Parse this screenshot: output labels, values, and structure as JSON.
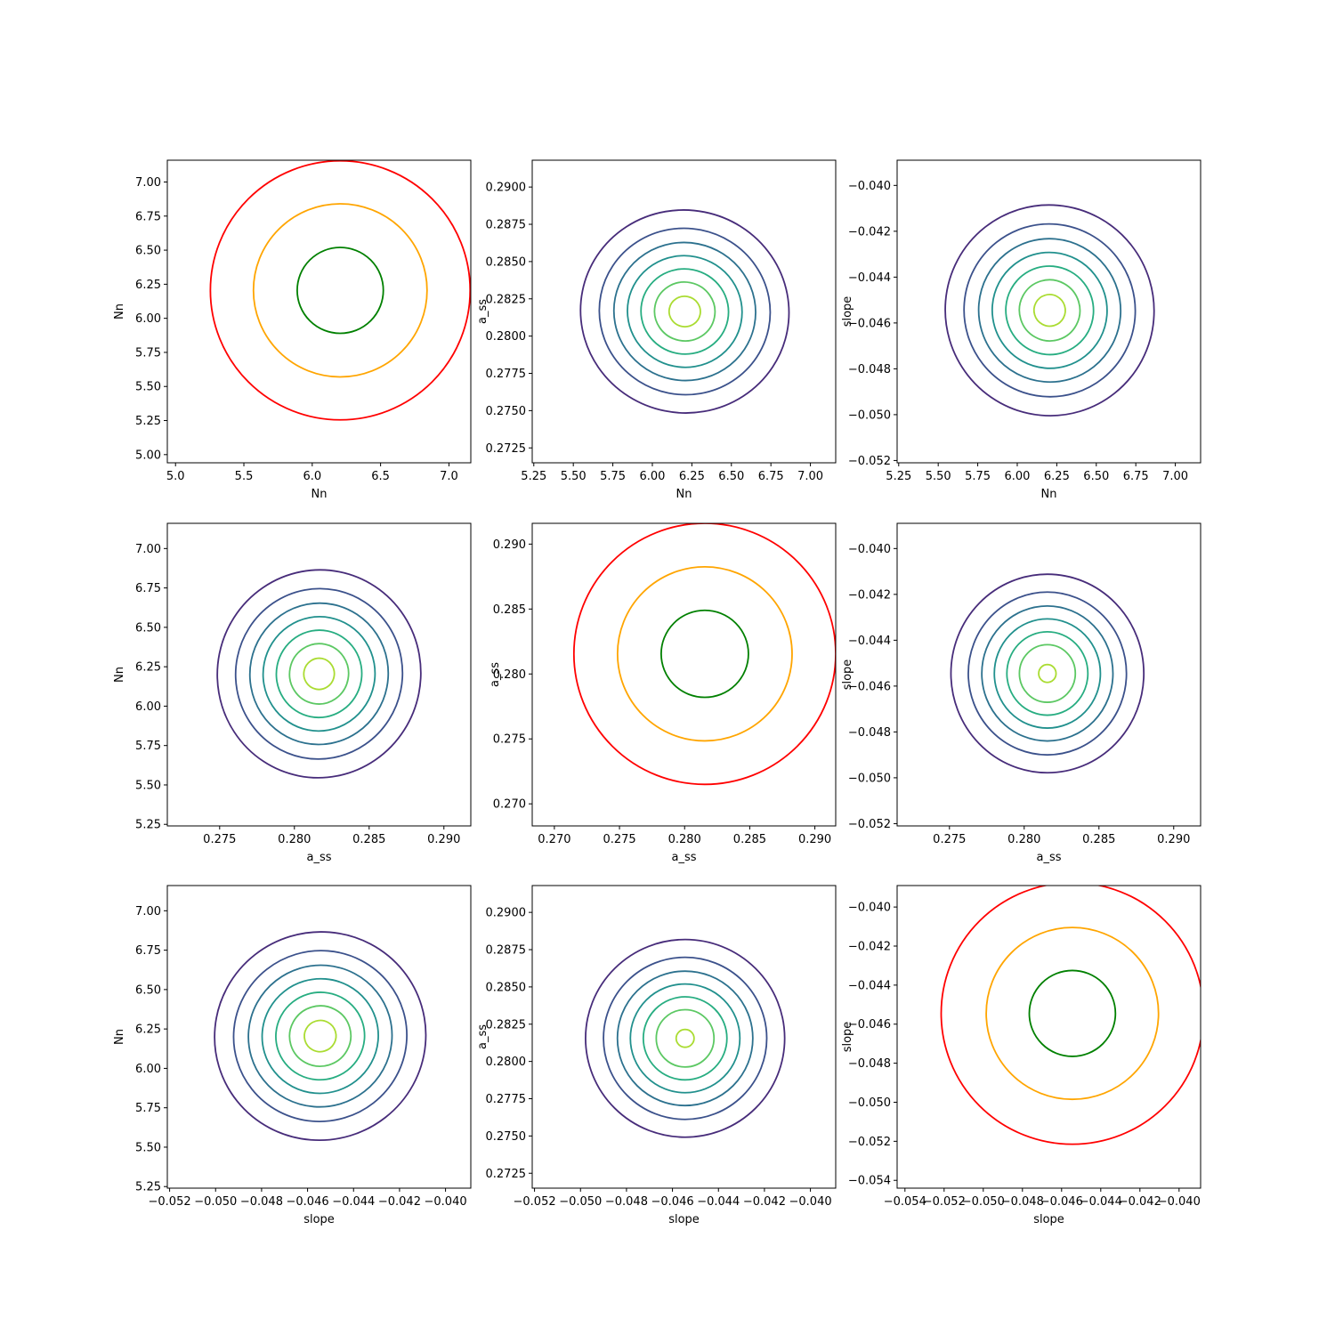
{
  "chart_data": [
    {
      "id": "p00",
      "row": 0,
      "col": 0,
      "type": "contour",
      "xlabel": "Nn",
      "ylabel": "Nn",
      "xlim": [
        4.94,
        7.16
      ],
      "ylim": [
        4.94,
        7.16
      ],
      "xticks": [
        "5.0",
        "5.5",
        "6.0",
        "6.5",
        "7.0"
      ],
      "yticks": [
        "5.00",
        "5.25",
        "5.50",
        "5.75",
        "6.00",
        "6.25",
        "6.50",
        "6.75",
        "7.00"
      ],
      "center": [
        6.205,
        6.205
      ],
      "contours": [
        {
          "color": "#ff0000",
          "rx": 0.95,
          "ry": 0.95,
          "rot": 0
        },
        {
          "color": "#ffa500",
          "rx": 0.635,
          "ry": 0.635,
          "rot": 0
        },
        {
          "color": "#008000",
          "rx": 0.315,
          "ry": 0.315,
          "rot": 0
        }
      ]
    },
    {
      "id": "p01",
      "row": 0,
      "col": 1,
      "type": "contour",
      "xlabel": "Nn",
      "ylabel": "a_ss",
      "xlim": [
        5.24,
        7.16
      ],
      "ylim": [
        0.2715,
        0.2918
      ],
      "xticks": [
        "5.25",
        "5.50",
        "5.75",
        "6.00",
        "6.25",
        "6.50",
        "6.75",
        "7.00"
      ],
      "yticks": [
        "0.2725",
        "0.2750",
        "0.2775",
        "0.2800",
        "0.2825",
        "0.2850",
        "0.2875",
        "0.2900"
      ],
      "center": [
        6.205,
        0.28165
      ],
      "contours": [
        {
          "color": "#472c7a",
          "scale": 1.0
        },
        {
          "color": "#3b518b",
          "scale": 0.82
        },
        {
          "color": "#2c718e",
          "scale": 0.68
        },
        {
          "color": "#21908d",
          "scale": 0.55
        },
        {
          "color": "#27ad81",
          "scale": 0.42
        },
        {
          "color": "#5cc863",
          "scale": 0.29
        },
        {
          "color": "#aadc32",
          "scale": 0.15
        }
      ],
      "outer": {
        "rx": 0.66,
        "ry": 0.0068,
        "rot": -0.2
      }
    },
    {
      "id": "p02",
      "row": 0,
      "col": 2,
      "type": "contour",
      "xlabel": "Nn",
      "ylabel": "slope",
      "xlim": [
        5.24,
        7.16
      ],
      "ylim": [
        -0.0521,
        -0.0389
      ],
      "xticks": [
        "5.25",
        "5.50",
        "5.75",
        "6.00",
        "6.25",
        "6.50",
        "6.75",
        "7.00"
      ],
      "yticks": [
        "−0.052",
        "−0.050",
        "−0.048",
        "−0.046",
        "−0.044",
        "−0.042",
        "−0.040"
      ],
      "center": [
        6.205,
        -0.04545
      ],
      "contours": [
        {
          "color": "#472c7a",
          "scale": 1.0
        },
        {
          "color": "#3b518b",
          "scale": 0.82
        },
        {
          "color": "#2c718e",
          "scale": 0.68
        },
        {
          "color": "#21908d",
          "scale": 0.55
        },
        {
          "color": "#27ad81",
          "scale": 0.42
        },
        {
          "color": "#5cc863",
          "scale": 0.29
        },
        {
          "color": "#aadc32",
          "scale": 0.15
        }
      ],
      "outer": {
        "rx": 0.66,
        "ry": 0.0046,
        "rot": 0.3
      }
    },
    {
      "id": "p10",
      "row": 1,
      "col": 0,
      "type": "contour",
      "xlabel": "a_ss",
      "ylabel": "Nn",
      "xlim": [
        0.2715,
        0.2918
      ],
      "ylim": [
        5.24,
        7.16
      ],
      "xticks": [
        "0.275",
        "0.280",
        "0.285",
        "0.290"
      ],
      "yticks": [
        "5.25",
        "5.50",
        "5.75",
        "6.00",
        "6.25",
        "6.50",
        "6.75",
        "7.00"
      ],
      "center": [
        0.28165,
        6.205
      ],
      "contours": [
        {
          "color": "#472c7a",
          "scale": 1.0
        },
        {
          "color": "#3b518b",
          "scale": 0.82
        },
        {
          "color": "#2c718e",
          "scale": 0.68
        },
        {
          "color": "#21908d",
          "scale": 0.55
        },
        {
          "color": "#27ad81",
          "scale": 0.42
        },
        {
          "color": "#5cc863",
          "scale": 0.29
        },
        {
          "color": "#aadc32",
          "scale": 0.15
        }
      ],
      "outer": {
        "rx": 0.0068,
        "ry": 0.66,
        "rot": -0.2
      }
    },
    {
      "id": "p11",
      "row": 1,
      "col": 1,
      "type": "contour",
      "xlabel": "a_ss",
      "ylabel": "a_ss",
      "xlim": [
        0.2683,
        0.2916
      ],
      "ylim": [
        0.2683,
        0.2916
      ],
      "xticks": [
        "0.270",
        "0.275",
        "0.280",
        "0.285",
        "0.290"
      ],
      "yticks": [
        "0.270",
        "0.275",
        "0.280",
        "0.285",
        "0.290"
      ],
      "center": [
        0.28155,
        0.28155
      ],
      "contours": [
        {
          "color": "#ff0000",
          "rx": 0.01005,
          "ry": 0.01005,
          "rot": 0
        },
        {
          "color": "#ffa500",
          "rx": 0.0067,
          "ry": 0.0067,
          "rot": 0
        },
        {
          "color": "#008000",
          "rx": 0.00335,
          "ry": 0.00335,
          "rot": 0
        }
      ]
    },
    {
      "id": "p12",
      "row": 1,
      "col": 2,
      "type": "contour",
      "xlabel": "a_ss",
      "ylabel": "slope",
      "xlim": [
        0.2715,
        0.2918
      ],
      "ylim": [
        -0.0521,
        -0.0389
      ],
      "xticks": [
        "0.275",
        "0.280",
        "0.285",
        "0.290"
      ],
      "yticks": [
        "−0.052",
        "−0.050",
        "−0.048",
        "−0.046",
        "−0.044",
        "−0.042",
        "−0.040"
      ],
      "center": [
        0.28155,
        -0.04545
      ],
      "contours": [
        {
          "color": "#472c7a",
          "scale": 1.0
        },
        {
          "color": "#3b518b",
          "scale": 0.82
        },
        {
          "color": "#2c718e",
          "scale": 0.68
        },
        {
          "color": "#21908d",
          "scale": 0.55
        },
        {
          "color": "#27ad81",
          "scale": 0.42
        },
        {
          "color": "#5cc863",
          "scale": 0.29
        },
        {
          "color": "#aadc32",
          "scale": 0.09
        }
      ],
      "outer": {
        "rx": 0.00645,
        "ry": 0.00433,
        "rot": 0
      }
    },
    {
      "id": "p20",
      "row": 2,
      "col": 0,
      "type": "contour",
      "xlabel": "slope",
      "ylabel": "Nn",
      "xlim": [
        -0.0521,
        -0.0389
      ],
      "ylim": [
        5.24,
        7.16
      ],
      "xticks": [
        "−0.052",
        "−0.050",
        "−0.048",
        "−0.046",
        "−0.044",
        "−0.042",
        "−0.040"
      ],
      "yticks": [
        "5.25",
        "5.50",
        "5.75",
        "6.00",
        "6.25",
        "6.50",
        "6.75",
        "7.00"
      ],
      "center": [
        -0.04545,
        6.205
      ],
      "contours": [
        {
          "color": "#472c7a",
          "scale": 1.0
        },
        {
          "color": "#3b518b",
          "scale": 0.82
        },
        {
          "color": "#2c718e",
          "scale": 0.68
        },
        {
          "color": "#21908d",
          "scale": 0.55
        },
        {
          "color": "#27ad81",
          "scale": 0.42
        },
        {
          "color": "#5cc863",
          "scale": 0.29
        },
        {
          "color": "#aadc32",
          "scale": 0.15
        }
      ],
      "outer": {
        "rx": 0.0046,
        "ry": 0.66,
        "rot": 0.3
      }
    },
    {
      "id": "p21",
      "row": 2,
      "col": 1,
      "type": "contour",
      "xlabel": "slope",
      "ylabel": "a_ss",
      "xlim": [
        -0.0521,
        -0.0389
      ],
      "ylim": [
        0.2715,
        0.2918
      ],
      "xticks": [
        "−0.052",
        "−0.050",
        "−0.048",
        "−0.046",
        "−0.044",
        "−0.042",
        "−0.040"
      ],
      "yticks": [
        "0.2725",
        "0.2750",
        "0.2775",
        "0.2800",
        "0.2825",
        "0.2850",
        "0.2875",
        "0.2900"
      ],
      "center": [
        -0.04545,
        0.28155
      ],
      "contours": [
        {
          "color": "#472c7a",
          "scale": 1.0
        },
        {
          "color": "#3b518b",
          "scale": 0.82
        },
        {
          "color": "#2c718e",
          "scale": 0.68
        },
        {
          "color": "#21908d",
          "scale": 0.55
        },
        {
          "color": "#27ad81",
          "scale": 0.42
        },
        {
          "color": "#5cc863",
          "scale": 0.29
        },
        {
          "color": "#aadc32",
          "scale": 0.09
        }
      ],
      "outer": {
        "rx": 0.00433,
        "ry": 0.00663,
        "rot": 0
      }
    },
    {
      "id": "p22",
      "row": 2,
      "col": 2,
      "type": "contour",
      "xlabel": "slope",
      "ylabel": "slope",
      "xlim": [
        -0.0544,
        -0.0389
      ],
      "ylim": [
        -0.0544,
        -0.0389
      ],
      "xticks": [
        "−0.054",
        "−0.052",
        "−0.050",
        "−0.048",
        "−0.046",
        "−0.044",
        "−0.042",
        "−0.040"
      ],
      "yticks": [
        "−0.054",
        "−0.052",
        "−0.050",
        "−0.048",
        "−0.046",
        "−0.044",
        "−0.042",
        "−0.040"
      ],
      "center": [
        -0.04545,
        -0.04545
      ],
      "contours": [
        {
          "color": "#ff0000",
          "rx": 0.0067,
          "ry": 0.0067,
          "rot": 0
        },
        {
          "color": "#ffa500",
          "rx": 0.0044,
          "ry": 0.0044,
          "rot": 0
        },
        {
          "color": "#008000",
          "rx": 0.0022,
          "ry": 0.0022,
          "rot": 0
        }
      ]
    }
  ]
}
